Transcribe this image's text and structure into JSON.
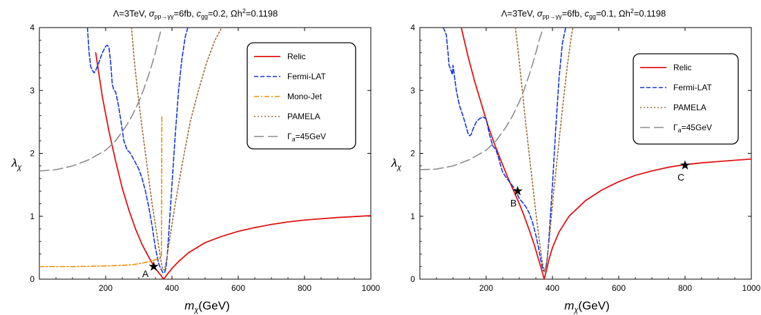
{
  "chart_data": [
    {
      "type": "line",
      "title": "Λ=3TeV, σpp→γγ=6fb, cgg=0.2, Ωh²=0.1198",
      "title_parts": {
        "a": "Λ=3TeV, ",
        "b": "σ",
        "c": "pp→γγ",
        "d": "=6fb, ",
        "e": "c",
        "f": "gg",
        "g": "=0.2, Ωh",
        "h": "2",
        "i": "=0.1198"
      },
      "xlabel": {
        "main": "m",
        "sub": "χ",
        "unit": "(GeV)"
      },
      "ylabel": {
        "main": "λ",
        "sub": "χ"
      },
      "xlim": [
        0,
        1000
      ],
      "ylim": [
        0,
        4
      ],
      "xticks": [
        200,
        400,
        600,
        800,
        1000
      ],
      "yticks": [
        0,
        1,
        2,
        3,
        4
      ],
      "xtick_labels": [
        "200",
        "400",
        "600",
        "800",
        "1000"
      ],
      "ytick_labels": [
        "0",
        "1",
        "2",
        "3",
        "4"
      ],
      "grid": false,
      "legend_position": "top-right",
      "series": [
        {
          "name": "Relic",
          "style": "solid",
          "color": "#e01010",
          "x": [
            170,
            190,
            210,
            230,
            250,
            270,
            290,
            310,
            330,
            350,
            365,
            375,
            385,
            400,
            420,
            450,
            500,
            550,
            600,
            650,
            700,
            750,
            800,
            850,
            900,
            950,
            1000
          ],
          "y": [
            3.6,
            2.9,
            2.35,
            1.88,
            1.45,
            1.1,
            0.8,
            0.55,
            0.35,
            0.17,
            0.07,
            0.0,
            0.07,
            0.17,
            0.28,
            0.42,
            0.58,
            0.68,
            0.76,
            0.82,
            0.87,
            0.91,
            0.94,
            0.96,
            0.98,
            0.995,
            1.01
          ]
        },
        {
          "name": "Fermi-LAT",
          "style": "dash",
          "color": "#1030e0",
          "x": [
            145,
            150,
            155,
            160,
            165,
            170,
            180,
            190,
            200,
            205,
            210,
            215,
            220,
            225,
            230,
            238,
            245,
            255,
            265,
            272,
            280,
            290,
            300,
            310,
            320,
            330,
            340,
            350,
            360,
            365,
            370,
            373,
            376,
            378,
            380,
            383,
            386,
            390,
            395,
            400,
            410,
            420,
            430,
            440,
            448
          ],
          "y": [
            4.0,
            3.6,
            3.38,
            3.32,
            3.28,
            3.32,
            3.45,
            3.6,
            3.7,
            3.72,
            3.68,
            3.45,
            3.1,
            3.0,
            2.98,
            2.78,
            2.55,
            2.2,
            2.05,
            2.02,
            1.95,
            1.85,
            1.75,
            1.6,
            1.4,
            1.15,
            0.85,
            0.5,
            0.25,
            0.18,
            0.13,
            0.1,
            0.1,
            0.11,
            0.14,
            0.22,
            0.4,
            0.7,
            1.1,
            1.5,
            2.3,
            3.0,
            3.5,
            3.85,
            4.0
          ]
        },
        {
          "name": "Mono-Jet",
          "style": "dashdot",
          "color": "#f08c00",
          "x": [
            0,
            100,
            150,
            200,
            250,
            280,
            300,
            320,
            340,
            350,
            360,
            366,
            368,
            368.5,
            369,
            369.5
          ],
          "y": [
            0.2,
            0.2,
            0.205,
            0.21,
            0.22,
            0.23,
            0.245,
            0.265,
            0.29,
            0.31,
            0.33,
            0.34,
            0.35,
            0.8,
            1.7,
            2.6
          ]
        },
        {
          "name": "PAMELA",
          "style": "dot",
          "color": "#9a6a35",
          "x": [
            278,
            285,
            295,
            310,
            325,
            340,
            355,
            365,
            372,
            378,
            385,
            395,
            410,
            430,
            455,
            480,
            505,
            530,
            550
          ],
          "y": [
            4.0,
            3.55,
            3.05,
            2.4,
            1.8,
            1.2,
            0.7,
            0.35,
            0.15,
            0.15,
            0.35,
            0.7,
            1.2,
            1.8,
            2.5,
            3.0,
            3.45,
            3.8,
            4.0
          ]
        },
        {
          "name": "Γa=45GeV",
          "name_parts": {
            "a": "Γ",
            "b": "a",
            "c": "=45GeV"
          },
          "style": "longdash",
          "color": "#8a8a8a",
          "x": [
            0,
            50,
            100,
            150,
            200,
            230,
            260,
            280,
            300,
            315,
            330,
            340,
            350,
            355,
            360,
            365,
            368
          ],
          "y": [
            1.72,
            1.74,
            1.8,
            1.9,
            2.05,
            2.2,
            2.42,
            2.6,
            2.82,
            3.02,
            3.25,
            3.42,
            3.6,
            3.72,
            3.82,
            3.92,
            4.0
          ]
        }
      ],
      "markers": [
        {
          "label": "A",
          "x": 345,
          "y": 0.2,
          "symbol": "star"
        }
      ]
    },
    {
      "type": "line",
      "title": "Λ=3TeV, σpp→γγ=6fb, cgg=0.1, Ωh²=0.1198",
      "title_parts": {
        "a": "Λ=3TeV, ",
        "b": "σ",
        "c": "pp→γγ",
        "d": "=6fb, ",
        "e": "c",
        "f": "gg",
        "g": "=0.1, Ωh",
        "h": "2",
        "i": "=0.1198"
      },
      "xlabel": {
        "main": "m",
        "sub": "χ",
        "unit": "(GeV)"
      },
      "ylabel": {
        "main": "λ",
        "sub": "χ"
      },
      "xlim": [
        0,
        1000
      ],
      "ylim": [
        0,
        4
      ],
      "xticks": [
        200,
        400,
        600,
        800,
        1000
      ],
      "yticks": [
        0,
        1,
        2,
        3,
        4
      ],
      "xtick_labels": [
        "200",
        "400",
        "600",
        "800",
        "1000"
      ],
      "ytick_labels": [
        "0",
        "1",
        "2",
        "3",
        "4"
      ],
      "grid": false,
      "legend_position": "top-right",
      "series": [
        {
          "name": "Relic",
          "style": "solid",
          "color": "#e01010",
          "x": [
            125,
            145,
            165,
            185,
            205,
            225,
            245,
            265,
            285,
            300,
            315,
            330,
            345,
            360,
            370,
            375,
            380,
            390,
            400,
            420,
            450,
            500,
            550,
            600,
            650,
            700,
            750,
            800,
            850,
            900,
            950,
            1000
          ],
          "y": [
            4.0,
            3.55,
            3.15,
            2.8,
            2.45,
            2.15,
            1.88,
            1.62,
            1.38,
            1.2,
            1.0,
            0.78,
            0.55,
            0.28,
            0.1,
            0.0,
            0.1,
            0.32,
            0.5,
            0.75,
            1.0,
            1.25,
            1.42,
            1.55,
            1.65,
            1.72,
            1.78,
            1.82,
            1.85,
            1.87,
            1.89,
            1.91
          ]
        },
        {
          "name": "Fermi-LAT",
          "style": "dash",
          "color": "#1030e0",
          "x": [
            70,
            75,
            80,
            85,
            88,
            92,
            95,
            98,
            100,
            110,
            120,
            130,
            140,
            145,
            150,
            155,
            160,
            170,
            180,
            190,
            200,
            210,
            220,
            230,
            238,
            245,
            250,
            260,
            270,
            280,
            290,
            300,
            310,
            320,
            330,
            340,
            350,
            360,
            365,
            370,
            373,
            376,
            380,
            385,
            390,
            400,
            410,
            420,
            430,
            440
          ],
          "y": [
            4.0,
            3.95,
            3.88,
            3.6,
            3.4,
            3.35,
            3.3,
            3.25,
            3.4,
            3.0,
            2.75,
            2.6,
            2.42,
            2.32,
            2.28,
            2.3,
            2.38,
            2.5,
            2.55,
            2.58,
            2.55,
            2.3,
            2.12,
            2.05,
            1.92,
            1.78,
            1.7,
            1.62,
            1.55,
            1.48,
            1.4,
            1.28,
            1.22,
            1.15,
            1.05,
            0.9,
            0.7,
            0.45,
            0.3,
            0.18,
            0.13,
            0.13,
            0.18,
            0.35,
            0.7,
            1.5,
            2.4,
            3.2,
            3.75,
            4.0
          ]
        },
        {
          "name": "PAMELA",
          "style": "dot",
          "color": "#9a6a35",
          "x": [
            288,
            295,
            305,
            320,
            335,
            350,
            362,
            370,
            376,
            382,
            390,
            402,
            415,
            430,
            445,
            458,
            462
          ],
          "y": [
            4.0,
            3.7,
            3.2,
            2.45,
            1.75,
            1.05,
            0.55,
            0.25,
            0.12,
            0.25,
            0.6,
            1.3,
            1.95,
            2.7,
            3.4,
            3.9,
            4.0
          ]
        },
        {
          "name": "Γa=45GeV",
          "name_parts": {
            "a": "Γ",
            "b": "a",
            "c": "=45GeV"
          },
          "style": "longdash",
          "color": "#8a8a8a",
          "x": [
            0,
            50,
            100,
            150,
            200,
            230,
            260,
            280,
            300,
            315,
            330,
            340,
            350,
            360,
            365,
            370,
            372
          ],
          "y": [
            1.74,
            1.75,
            1.8,
            1.9,
            2.05,
            2.2,
            2.42,
            2.6,
            2.82,
            3.02,
            3.25,
            3.42,
            3.6,
            3.8,
            3.88,
            3.96,
            4.0
          ]
        }
      ],
      "markers": [
        {
          "label": "B",
          "x": 295,
          "y": 1.4,
          "symbol": "star"
        },
        {
          "label": "C",
          "x": 800,
          "y": 1.81,
          "symbol": "star"
        }
      ]
    }
  ]
}
